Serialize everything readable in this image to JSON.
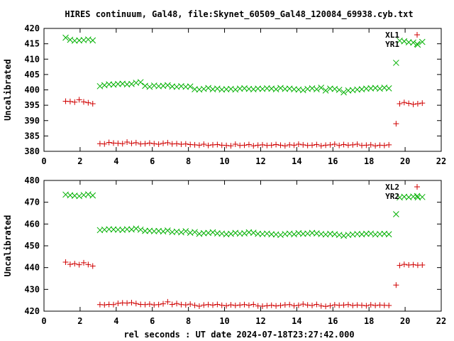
{
  "title": "HIRES continuum, Gal48, file:Skynet_60509_Gal48_120084_69938.cyb.txt",
  "xlabel": "rel seconds : UT date 2024-07-18T23:27:42.000",
  "colors": {
    "red": "#d00000",
    "green": "#00b000"
  },
  "chart_data": [
    {
      "type": "scatter",
      "ylabel": "Uncalibrated",
      "xlim": [
        0,
        22
      ],
      "ylim": [
        380,
        420
      ],
      "xticks": [
        "0",
        "2",
        "4",
        "6",
        "8",
        "10",
        "12",
        "14",
        "16",
        "18",
        "20",
        "22"
      ],
      "yticks": [
        "380",
        "385",
        "390",
        "395",
        "400",
        "405",
        "410",
        "415",
        "420"
      ],
      "grid": false,
      "legend_position": "top-right",
      "series": [
        {
          "name": "XL1",
          "marker": "plus",
          "color": "#d00000",
          "x": [
            1.2,
            1.45,
            1.7,
            1.95,
            2.2,
            2.45,
            2.7,
            3.1,
            3.35,
            3.6,
            3.85,
            4.1,
            4.35,
            4.6,
            4.85,
            5.1,
            5.35,
            5.6,
            5.85,
            6.1,
            6.35,
            6.6,
            6.85,
            7.1,
            7.35,
            7.6,
            7.85,
            8.1,
            8.35,
            8.6,
            8.85,
            9.1,
            9.35,
            9.6,
            9.85,
            10.1,
            10.35,
            10.6,
            10.85,
            11.1,
            11.35,
            11.6,
            11.85,
            12.1,
            12.35,
            12.6,
            12.85,
            13.1,
            13.35,
            13.6,
            13.85,
            14.1,
            14.35,
            14.6,
            14.85,
            15.1,
            15.35,
            15.6,
            15.85,
            16.1,
            16.35,
            16.6,
            16.85,
            17.1,
            17.35,
            17.6,
            17.85,
            18.1,
            18.35,
            18.6,
            18.85,
            19.1,
            19.5,
            19.7,
            19.95,
            20.2,
            20.45,
            20.7,
            20.95
          ],
          "y": [
            396.3,
            396.2,
            396.0,
            396.8,
            396.1,
            395.8,
            395.5,
            382.5,
            382.4,
            382.9,
            382.7,
            382.6,
            382.5,
            383.0,
            382.6,
            382.8,
            382.4,
            382.5,
            382.7,
            382.5,
            382.3,
            382.6,
            382.8,
            382.4,
            382.5,
            382.3,
            382.4,
            382.2,
            382.1,
            382.0,
            382.3,
            381.9,
            382.1,
            382.2,
            382.0,
            381.9,
            381.8,
            382.3,
            381.9,
            382.0,
            382.2,
            381.8,
            382.0,
            382.1,
            381.9,
            382.0,
            382.2,
            382.0,
            381.8,
            382.1,
            382.0,
            382.3,
            382.1,
            381.9,
            382.0,
            382.2,
            381.8,
            382.0,
            382.1,
            382.3,
            381.9,
            382.2,
            382.0,
            382.1,
            382.3,
            381.9,
            382.0,
            382.1,
            381.8,
            382.0,
            381.9,
            382.1,
            389.0,
            395.5,
            395.9,
            395.6,
            395.3,
            395.5,
            395.7
          ]
        },
        {
          "name": "YR1",
          "marker": "cross",
          "color": "#00b000",
          "x": [
            1.2,
            1.45,
            1.7,
            1.95,
            2.2,
            2.45,
            2.7,
            3.1,
            3.35,
            3.6,
            3.85,
            4.1,
            4.35,
            4.6,
            4.85,
            5.1,
            5.35,
            5.6,
            5.85,
            6.1,
            6.35,
            6.6,
            6.85,
            7.1,
            7.35,
            7.6,
            7.85,
            8.1,
            8.35,
            8.6,
            8.85,
            9.1,
            9.35,
            9.6,
            9.85,
            10.1,
            10.35,
            10.6,
            10.85,
            11.1,
            11.35,
            11.6,
            11.85,
            12.1,
            12.35,
            12.6,
            12.85,
            13.1,
            13.35,
            13.6,
            13.85,
            14.1,
            14.35,
            14.6,
            14.85,
            15.1,
            15.35,
            15.6,
            15.85,
            16.1,
            16.35,
            16.6,
            16.85,
            17.1,
            17.35,
            17.6,
            17.85,
            18.1,
            18.35,
            18.6,
            18.85,
            19.1,
            19.5,
            19.7,
            19.95,
            20.2,
            20.45,
            20.7,
            20.95
          ],
          "y": [
            417.0,
            416.3,
            416.0,
            416.1,
            416.2,
            416.4,
            416.1,
            401.2,
            401.5,
            401.8,
            401.7,
            401.9,
            402.0,
            401.8,
            401.9,
            402.3,
            402.5,
            401.3,
            401.0,
            401.4,
            401.2,
            401.3,
            401.5,
            401.1,
            401.0,
            401.2,
            401.0,
            401.1,
            400.2,
            400.1,
            400.3,
            400.6,
            400.2,
            400.4,
            400.1,
            400.2,
            400.3,
            400.1,
            400.4,
            400.5,
            400.3,
            400.2,
            400.4,
            400.3,
            400.5,
            400.4,
            400.2,
            400.6,
            400.3,
            400.4,
            400.2,
            400.1,
            399.9,
            400.3,
            400.5,
            400.2,
            400.7,
            399.8,
            400.4,
            400.3,
            400.0,
            399.2,
            399.8,
            399.9,
            400.1,
            400.2,
            400.4,
            400.5,
            400.6,
            400.4,
            400.7,
            400.5,
            408.8,
            416.0,
            415.8,
            415.5,
            415.4,
            414.7,
            415.6
          ]
        }
      ]
    },
    {
      "type": "scatter",
      "ylabel": "Uncalibrated",
      "xlim": [
        0,
        22
      ],
      "ylim": [
        420,
        480
      ],
      "xticks": [
        "0",
        "2",
        "4",
        "6",
        "8",
        "10",
        "12",
        "14",
        "16",
        "18",
        "20",
        "22"
      ],
      "yticks": [
        "420",
        "430",
        "440",
        "450",
        "460",
        "470",
        "480"
      ],
      "grid": false,
      "legend_position": "top-right",
      "series": [
        {
          "name": "XL2",
          "marker": "plus",
          "color": "#d00000",
          "x": [
            1.2,
            1.45,
            1.7,
            1.95,
            2.2,
            2.45,
            2.7,
            3.1,
            3.35,
            3.6,
            3.85,
            4.1,
            4.35,
            4.6,
            4.85,
            5.1,
            5.35,
            5.6,
            5.85,
            6.1,
            6.35,
            6.6,
            6.85,
            7.1,
            7.35,
            7.6,
            7.85,
            8.1,
            8.35,
            8.6,
            8.85,
            9.1,
            9.35,
            9.6,
            9.85,
            10.1,
            10.35,
            10.6,
            10.85,
            11.1,
            11.35,
            11.6,
            11.85,
            12.1,
            12.35,
            12.6,
            12.85,
            13.1,
            13.35,
            13.6,
            13.85,
            14.1,
            14.35,
            14.6,
            14.85,
            15.1,
            15.35,
            15.6,
            15.85,
            16.1,
            16.35,
            16.6,
            16.85,
            17.1,
            17.35,
            17.6,
            17.85,
            18.1,
            18.35,
            18.6,
            18.85,
            19.1,
            19.5,
            19.7,
            19.95,
            20.2,
            20.45,
            20.7,
            20.95
          ],
          "y": [
            442.5,
            441.5,
            441.8,
            441.3,
            442.2,
            441.4,
            440.7,
            423.0,
            422.9,
            423.1,
            423.0,
            423.6,
            423.8,
            423.7,
            423.9,
            423.5,
            423.1,
            423.0,
            423.2,
            422.9,
            423.0,
            423.4,
            424.3,
            423.1,
            423.5,
            423.0,
            422.9,
            423.2,
            422.7,
            422.3,
            422.8,
            423.0,
            422.8,
            423.1,
            422.7,
            422.5,
            422.9,
            422.6,
            422.8,
            423.0,
            422.7,
            423.1,
            422.4,
            422.3,
            422.5,
            422.7,
            422.4,
            422.6,
            422.9,
            423.0,
            422.5,
            422.7,
            423.2,
            422.8,
            422.6,
            423.1,
            422.4,
            422.2,
            422.5,
            422.9,
            422.7,
            422.8,
            423.0,
            422.6,
            422.8,
            422.7,
            422.5,
            422.9,
            422.6,
            422.8,
            422.7,
            422.6,
            432.0,
            441.0,
            441.5,
            441.2,
            441.3,
            441.1,
            441.2
          ]
        },
        {
          "name": "YR2",
          "marker": "cross",
          "color": "#00b000",
          "x": [
            1.2,
            1.45,
            1.7,
            1.95,
            2.2,
            2.45,
            2.7,
            3.1,
            3.35,
            3.6,
            3.85,
            4.1,
            4.35,
            4.6,
            4.85,
            5.1,
            5.35,
            5.6,
            5.85,
            6.1,
            6.35,
            6.6,
            6.85,
            7.1,
            7.35,
            7.6,
            7.85,
            8.1,
            8.35,
            8.6,
            8.85,
            9.1,
            9.35,
            9.6,
            9.85,
            10.1,
            10.35,
            10.6,
            10.85,
            11.1,
            11.35,
            11.6,
            11.85,
            12.1,
            12.35,
            12.6,
            12.85,
            13.1,
            13.35,
            13.6,
            13.85,
            14.1,
            14.35,
            14.6,
            14.85,
            15.1,
            15.35,
            15.6,
            15.85,
            16.1,
            16.35,
            16.6,
            16.85,
            17.1,
            17.35,
            17.6,
            17.85,
            18.1,
            18.35,
            18.6,
            18.85,
            19.1,
            19.5,
            19.7,
            19.95,
            20.2,
            20.45,
            20.7,
            20.95
          ],
          "y": [
            473.5,
            473.2,
            473.0,
            472.8,
            473.3,
            473.6,
            473.1,
            457.2,
            457.4,
            457.6,
            457.5,
            457.4,
            457.3,
            457.6,
            457.5,
            457.9,
            457.4,
            456.8,
            456.9,
            456.7,
            456.8,
            456.6,
            457.0,
            456.3,
            456.5,
            456.2,
            456.7,
            456.0,
            456.3,
            455.5,
            455.8,
            455.9,
            456.2,
            455.7,
            455.6,
            455.3,
            455.5,
            455.9,
            455.6,
            455.7,
            456.2,
            456.0,
            455.5,
            455.4,
            455.6,
            455.3,
            455.2,
            455.0,
            455.4,
            455.6,
            455.3,
            455.8,
            455.5,
            455.6,
            455.9,
            455.7,
            455.4,
            455.2,
            455.5,
            455.3,
            455.0,
            454.6,
            455.0,
            455.2,
            455.4,
            455.3,
            455.5,
            455.6,
            455.2,
            455.4,
            455.5,
            455.3,
            464.5,
            472.2,
            472.5,
            472.3,
            472.6,
            472.2,
            472.4
          ]
        }
      ]
    }
  ]
}
